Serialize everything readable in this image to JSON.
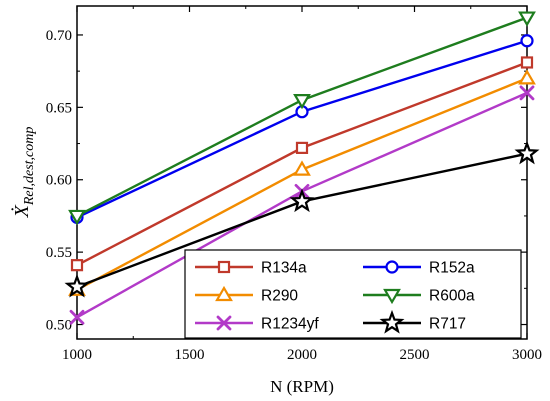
{
  "chart_data": {
    "type": "line",
    "title": "",
    "xlabel": "N (RPM)",
    "ylabel_main": "Ẋ",
    "ylabel_sub": "Rel,dest,comp",
    "x": [
      1000,
      2000,
      3000
    ],
    "xlim": [
      1000,
      3000
    ],
    "ylim": [
      0.49,
      0.72
    ],
    "xticks": [
      "1000",
      "1500",
      "2000",
      "2500",
      "3000"
    ],
    "yticks": [
      "0.50",
      "0.55",
      "0.60",
      "0.65",
      "0.70"
    ],
    "grid": false,
    "legend_position": "bottom-right",
    "series": [
      {
        "name": "R134a",
        "values": [
          0.541,
          0.622,
          0.681
        ],
        "color": "#c0392b",
        "marker": "square"
      },
      {
        "name": "R152a",
        "values": [
          0.574,
          0.647,
          0.696
        ],
        "color": "#0000ee",
        "marker": "circle"
      },
      {
        "name": "R290",
        "values": [
          0.524,
          0.607,
          0.67
        ],
        "color": "#f28c00",
        "marker": "triangle-up"
      },
      {
        "name": "R600a",
        "values": [
          0.575,
          0.655,
          0.712
        ],
        "color": "#1e7d1e",
        "marker": "triangle-down"
      },
      {
        "name": "R1234yf",
        "values": [
          0.505,
          0.592,
          0.66
        ],
        "color": "#b23ac8",
        "marker": "x"
      },
      {
        "name": "R717",
        "values": [
          0.526,
          0.585,
          0.618
        ],
        "color": "#000000",
        "marker": "star"
      }
    ]
  }
}
